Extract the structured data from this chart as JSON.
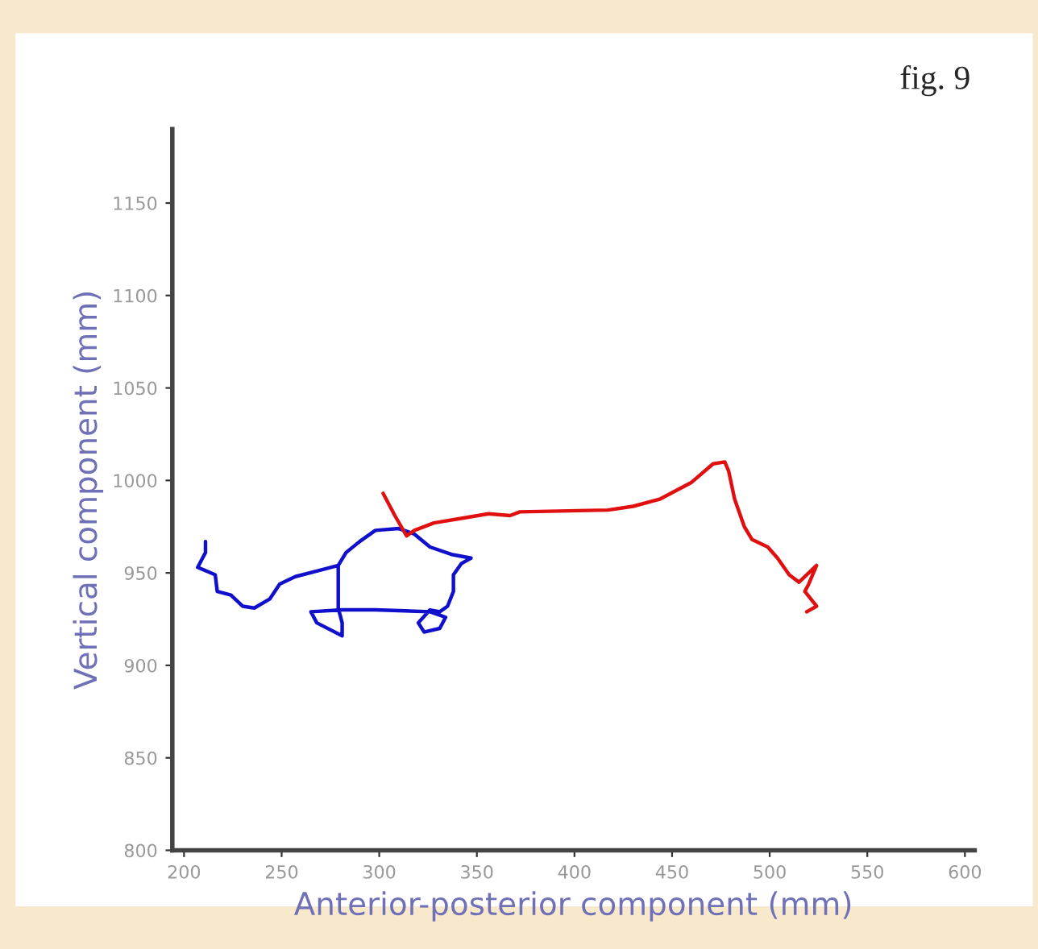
{
  "chart_data": {
    "type": "line",
    "xlabel": "Anterior-posterior component (mm)",
    "ylabel": "Vertical component (mm)",
    "annotations": [
      "fig. 9"
    ],
    "xlim": [
      194,
      605
    ],
    "ylim": [
      800,
      1190
    ],
    "xticks": [
      200,
      250,
      300,
      350,
      400,
      450,
      500,
      550,
      600
    ],
    "yticks": [
      800,
      850,
      900,
      950,
      1000,
      1050,
      1100,
      1150
    ],
    "grid": false,
    "legend": false,
    "marker": "none",
    "line_style": "solid",
    "series": [
      {
        "color": "#1010cc",
        "x": [
          211,
          211,
          207,
          216,
          217,
          224,
          230,
          236,
          244,
          249,
          257,
          268,
          279,
          283,
          290,
          298,
          310,
          318,
          326,
          337,
          347,
          342,
          338,
          338,
          335,
          331,
          326,
          320,
          323,
          331,
          334,
          326,
          298,
          281,
          265,
          268,
          281,
          281,
          279,
          279
        ],
        "values": [
          967,
          961,
          953,
          949,
          940,
          938,
          932,
          931,
          936,
          944,
          948,
          951,
          954,
          961,
          967,
          973,
          974,
          971,
          964,
          960,
          958,
          955,
          949,
          940,
          932,
          929,
          930,
          923,
          918,
          920,
          926,
          929,
          930,
          930,
          929,
          923,
          916,
          923,
          931,
          954
        ]
      },
      {
        "color": "#e01010",
        "x": [
          302,
          308,
          314,
          318,
          328,
          345,
          356,
          367,
          372,
          417,
          430,
          444,
          460,
          471,
          477,
          479,
          482,
          487,
          491,
          499,
          504,
          510,
          515,
          524,
          520,
          518,
          524,
          519
        ],
        "values": [
          993,
          981,
          970,
          973,
          977,
          980,
          982,
          981,
          983,
          984,
          986,
          990,
          999,
          1009,
          1010,
          1005,
          990,
          975,
          968,
          964,
          958,
          949,
          945,
          954,
          944,
          940,
          932,
          929
        ]
      }
    ]
  }
}
